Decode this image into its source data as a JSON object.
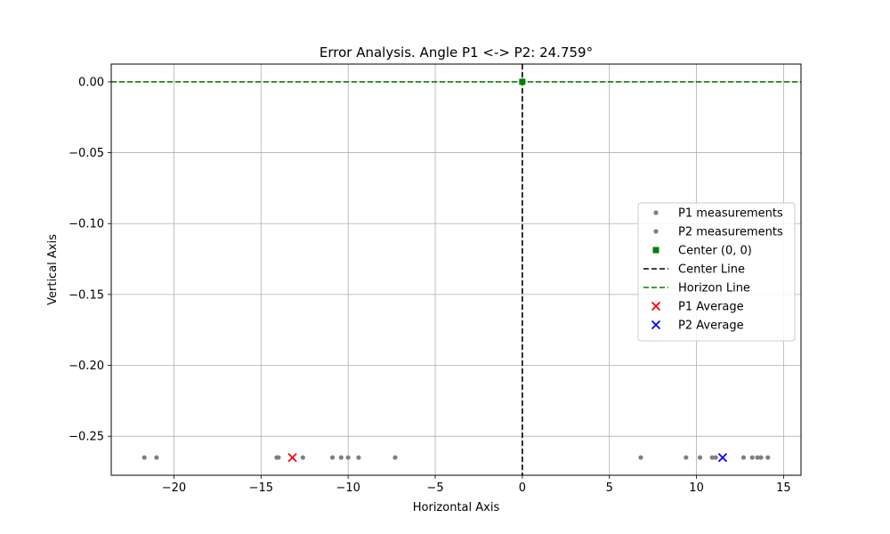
{
  "chart_data": {
    "type": "scatter",
    "title": "Error Analysis. Angle P1 <-> P2: 24.759°",
    "xlabel": "Horizontal Axis",
    "ylabel": "Vertical Axis",
    "xlim": [
      -23.6,
      16.0
    ],
    "ylim": [
      -0.2775,
      0.0125
    ],
    "x_ticks": [
      -20,
      -15,
      -10,
      -5,
      0,
      5,
      10,
      15
    ],
    "x_tick_labels": [
      "−20",
      "−15",
      "−10",
      "−5",
      "0",
      "5",
      "10",
      "15"
    ],
    "y_ticks": [
      0.0,
      -0.05,
      -0.1,
      -0.15,
      -0.2,
      -0.25
    ],
    "y_tick_labels": [
      "0.00",
      "−0.05",
      "−0.10",
      "−0.15",
      "−0.20",
      "−0.25"
    ],
    "grid": true,
    "legend_position": "center-right",
    "series": [
      {
        "name": "P1 measurements",
        "kind": "scatter",
        "color": "#808080",
        "points": [
          {
            "x": -21.7,
            "y": -0.265
          },
          {
            "x": -21.0,
            "y": -0.265
          },
          {
            "x": -14.1,
            "y": -0.265
          },
          {
            "x": -14.0,
            "y": -0.265
          },
          {
            "x": -12.6,
            "y": -0.265
          },
          {
            "x": -10.9,
            "y": -0.265
          },
          {
            "x": -10.4,
            "y": -0.265
          },
          {
            "x": -10.0,
            "y": -0.265
          },
          {
            "x": -9.4,
            "y": -0.265
          },
          {
            "x": -7.3,
            "y": -0.265
          }
        ]
      },
      {
        "name": "P2 measurements",
        "kind": "scatter",
        "color": "#808080",
        "points": [
          {
            "x": 6.8,
            "y": -0.265
          },
          {
            "x": 9.4,
            "y": -0.265
          },
          {
            "x": 10.2,
            "y": -0.265
          },
          {
            "x": 10.9,
            "y": -0.265
          },
          {
            "x": 11.1,
            "y": -0.265
          },
          {
            "x": 12.7,
            "y": -0.265
          },
          {
            "x": 13.2,
            "y": -0.265
          },
          {
            "x": 13.5,
            "y": -0.265
          },
          {
            "x": 13.7,
            "y": -0.265
          },
          {
            "x": 14.1,
            "y": -0.265
          }
        ]
      },
      {
        "name": "Center (0, 0)",
        "kind": "square",
        "color": "#008000",
        "points": [
          {
            "x": 0,
            "y": 0
          }
        ]
      },
      {
        "name": "Center Line",
        "kind": "vline",
        "color": "#000000",
        "x": 0
      },
      {
        "name": "Horizon Line",
        "kind": "hline",
        "color": "#008000",
        "y": 0
      },
      {
        "name": "P1 Average",
        "kind": "cross",
        "color": "#ff0000",
        "points": [
          {
            "x": -13.2,
            "y": -0.265
          }
        ]
      },
      {
        "name": "P2 Average",
        "kind": "cross",
        "color": "#0000ff",
        "points": [
          {
            "x": 11.5,
            "y": -0.265
          }
        ]
      }
    ]
  }
}
